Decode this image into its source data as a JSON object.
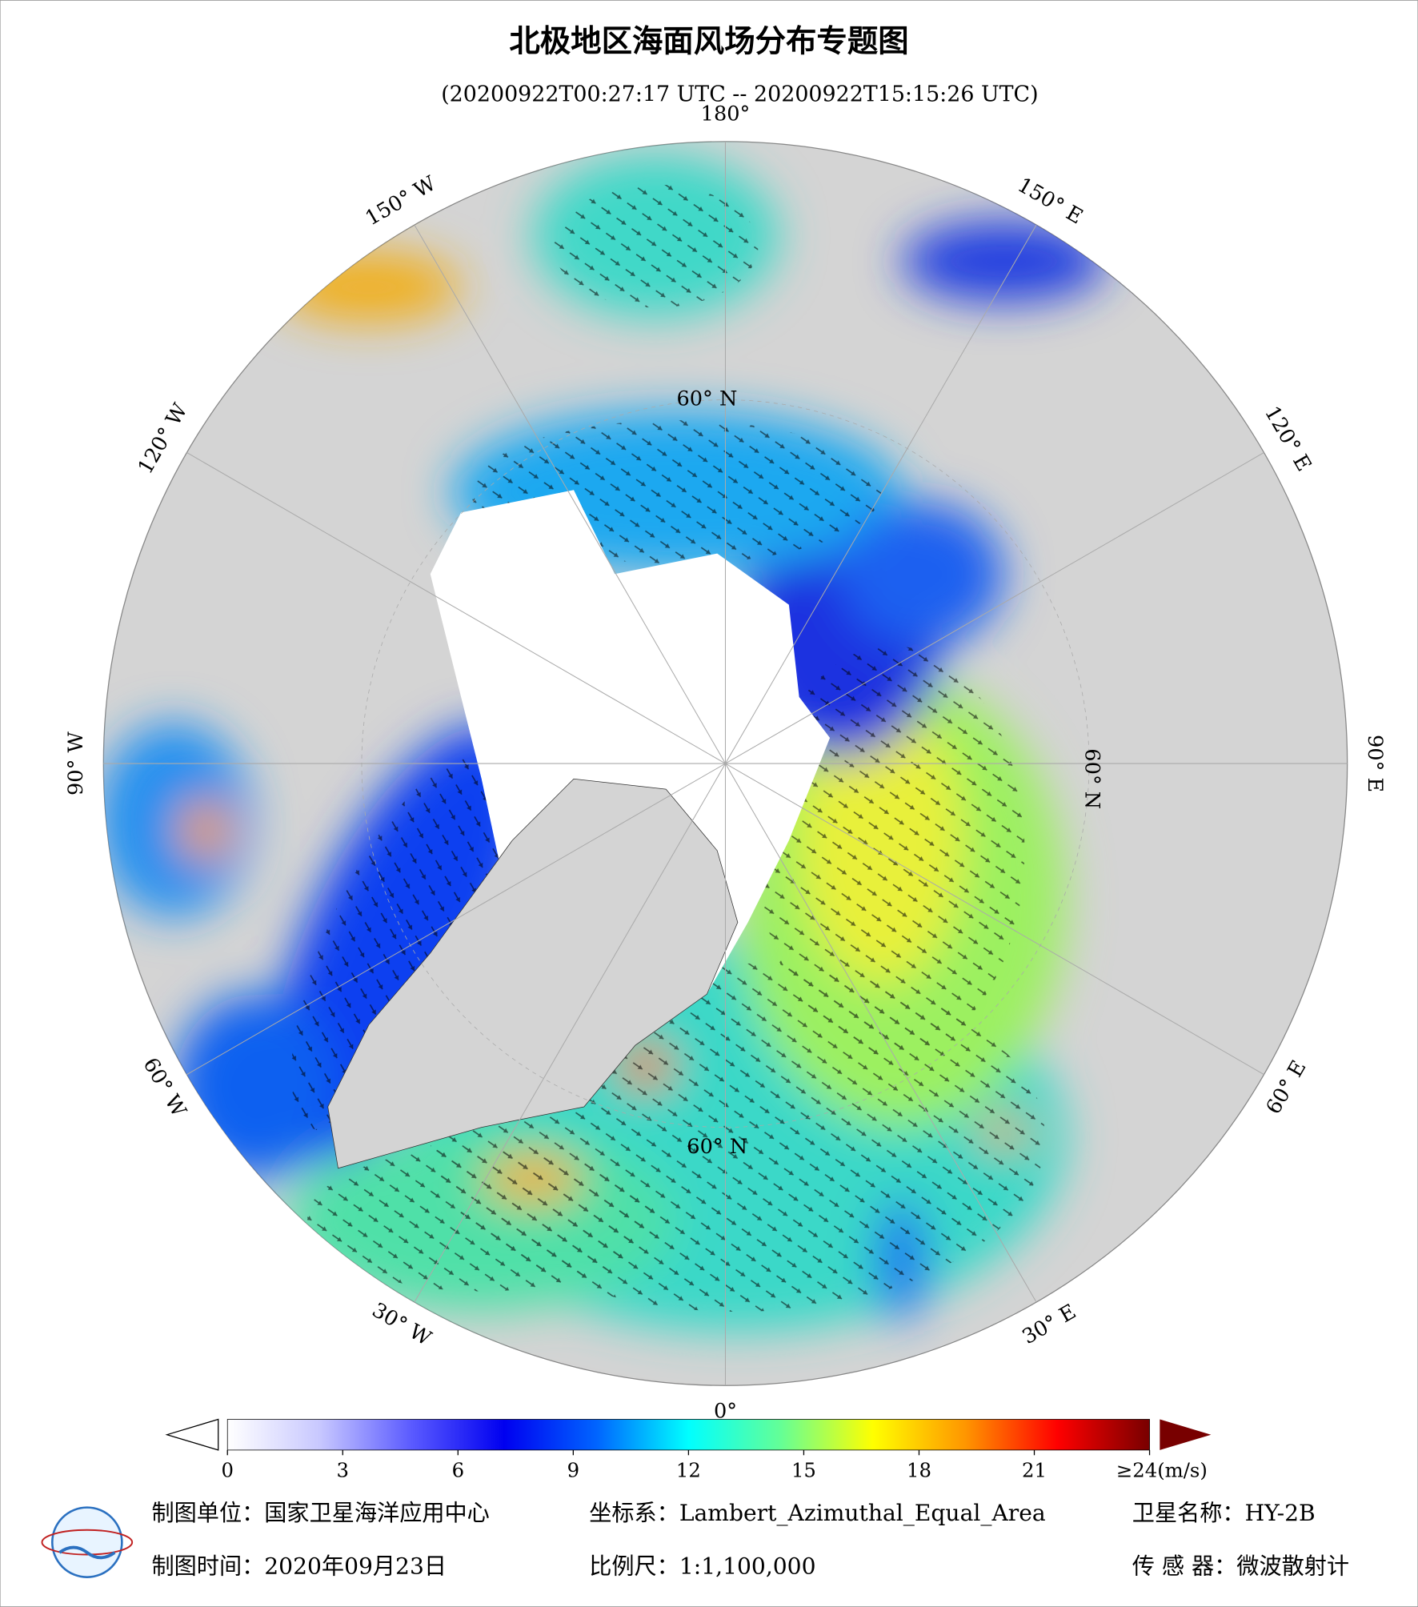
{
  "header": {
    "title": "北极地区海面风场分布专题图",
    "subtitle": "(20200922T00:27:17 UTC -- 20200922T15:15:26 UTC)"
  },
  "map": {
    "longitude_labels": [
      "180°",
      "150° E",
      "120° E",
      "90° E",
      "60° E",
      "30° E",
      "0°",
      "30° W",
      "60° W",
      "90° W",
      "120° W",
      "150° W"
    ],
    "latitude_labels": [
      "60° N",
      "60° N",
      "60° N"
    ]
  },
  "colorbar": {
    "range": [
      0,
      24
    ],
    "ticks": [
      0,
      3,
      6,
      9,
      12,
      15,
      18,
      21,
      {
        "value": 24,
        "label": "≥24(m/s)"
      }
    ],
    "colors": [
      "#ffffff",
      "#c8c8ff",
      "#5a5aff",
      "#0000f0",
      "#0064ff",
      "#00ffff",
      "#64ff96",
      "#ffff00",
      "#ff9600",
      "#ff0000",
      "#780000"
    ]
  },
  "footer": {
    "rows": [
      [
        "制图单位：国家卫星海洋应用中心",
        "坐标系：Lambert_Azimuthal_Equal_Area",
        "卫星名称：HY-2B"
      ],
      [
        "制图时间：2020年09月23日",
        "比例尺：1:1,100,000",
        "传 感 器：微波散射计"
      ]
    ]
  }
}
